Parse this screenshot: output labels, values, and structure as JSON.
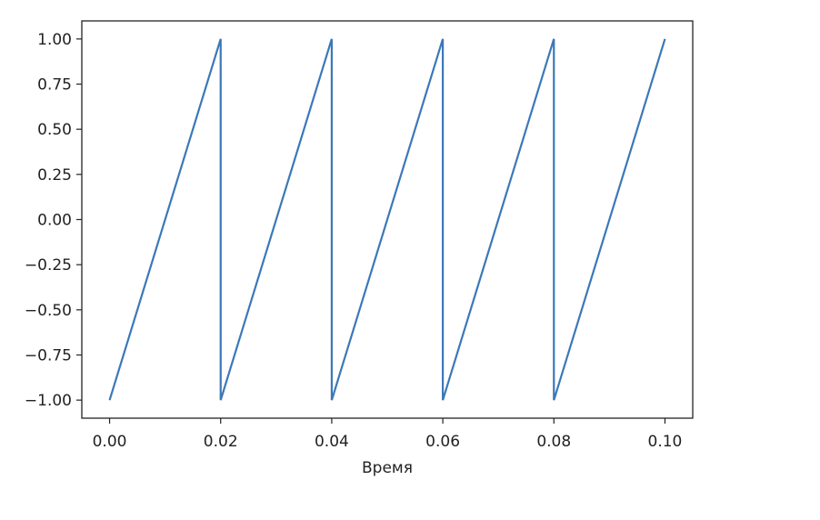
{
  "chart_data": {
    "type": "line",
    "title": "",
    "xlabel": "Время",
    "ylabel": "",
    "xlim": [
      -0.005,
      0.105
    ],
    "ylim": [
      -1.1,
      1.1
    ],
    "x_ticks": [
      0.0,
      0.02,
      0.04,
      0.06,
      0.08,
      0.1
    ],
    "x_tick_labels": [
      "0.00",
      "0.02",
      "0.04",
      "0.06",
      "0.08",
      "0.10"
    ],
    "y_ticks": [
      1.0,
      0.75,
      0.5,
      0.25,
      0.0,
      -0.25,
      -0.5,
      -0.75,
      -1.0
    ],
    "y_tick_labels": [
      "1.00",
      "0.75",
      "0.50",
      "0.25",
      "0.00",
      "−0.25",
      "−0.50",
      "−0.75",
      "−1.00"
    ],
    "grid": false,
    "series": [
      {
        "color": "#3b78b8",
        "x": [
          0.0,
          0.02,
          0.02,
          0.04,
          0.04,
          0.06,
          0.06,
          0.08,
          0.08,
          0.1
        ],
        "y": [
          -1.0,
          1.0,
          -1.0,
          1.0,
          -1.0,
          1.0,
          -1.0,
          1.0,
          -1.0,
          1.0
        ]
      }
    ]
  }
}
